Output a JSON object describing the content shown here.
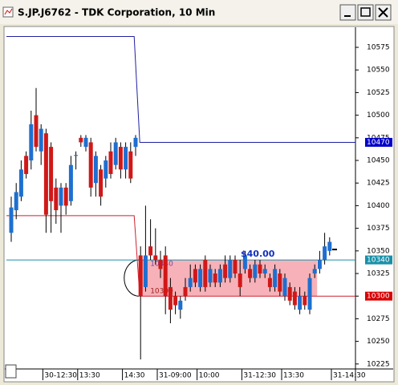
{
  "window": {
    "title": "S.JP.J6762 - TDK Corporation, 10 Min"
  },
  "chart_data": {
    "type": "candlestick",
    "categories": [
      null,
      null,
      null,
      null,
      null,
      null,
      null,
      "30-12:30",
      null,
      null,
      null,
      null,
      null,
      null,
      "13:30",
      null,
      null,
      null,
      null,
      null,
      null,
      null,
      null,
      "14:30",
      null,
      null,
      null,
      null,
      null,
      null,
      "31-09:00",
      null,
      null,
      null,
      null,
      null,
      null,
      null,
      "10:00",
      null,
      null,
      null,
      null,
      null,
      null,
      null,
      null,
      "31-12:30",
      null,
      null,
      null,
      null,
      null,
      null,
      null,
      "13:30",
      null,
      null,
      null,
      null,
      null,
      null,
      null,
      null,
      null,
      "31-14:30"
    ],
    "open": [
      10370,
      10395,
      10410,
      10455,
      10450,
      10500,
      10460,
      10480,
      10465,
      10420,
      10400,
      10420,
      10405,
      10455,
      10475,
      10465,
      10470,
      10425,
      10440,
      10430,
      10460,
      10445,
      10465,
      10440,
      10460,
      10465,
      10345,
      10310,
      10355,
      10345,
      10340,
      10345,
      10310,
      10300,
      10285,
      10310,
      10310,
      10330,
      10310,
      10340,
      10315,
      10325,
      10315,
      10335,
      10320,
      10340,
      10325,
      10330,
      10330,
      10320,
      10335,
      10325,
      10320,
      10310,
      10325,
      10300,
      10310,
      10305,
      10285,
      10300,
      10285,
      10325,
      10330,
      10340,
      10350,
      10352
    ],
    "high": [
      10410,
      10425,
      10450,
      10460,
      10505,
      10530,
      10490,
      10485,
      10470,
      10430,
      10425,
      10425,
      10455,
      10460,
      10478,
      10478,
      10475,
      10460,
      10445,
      10455,
      10470,
      10475,
      10470,
      10470,
      10470,
      10478,
      10355,
      10400,
      10385,
      10375,
      10350,
      10355,
      10320,
      10305,
      10300,
      10320,
      10335,
      10335,
      10335,
      10345,
      10335,
      10330,
      10335,
      10345,
      10345,
      10345,
      10340,
      10350,
      10335,
      10340,
      10340,
      10335,
      10325,
      10335,
      10330,
      10325,
      10315,
      10310,
      10310,
      10305,
      10325,
      10335,
      10350,
      10370,
      10365,
      10352
    ],
    "low": [
      10360,
      10385,
      10405,
      10430,
      10440,
      10460,
      10445,
      10370,
      10370,
      10380,
      10370,
      10390,
      10400,
      10440,
      10465,
      10460,
      10410,
      10410,
      10400,
      10420,
      10430,
      10440,
      10430,
      10430,
      10425,
      10455,
      10230,
      10305,
      10340,
      10335,
      10320,
      10280,
      10270,
      10280,
      10275,
      10295,
      10305,
      10310,
      10305,
      10305,
      10310,
      10310,
      10310,
      10315,
      10315,
      10320,
      10300,
      10325,
      10315,
      10315,
      10320,
      10320,
      10305,
      10305,
      10300,
      10295,
      10290,
      10285,
      10280,
      10285,
      10280,
      10320,
      10325,
      10335,
      10345,
      10352
    ],
    "close": [
      10398,
      10415,
      10440,
      10435,
      10490,
      10465,
      10485,
      10390,
      10405,
      10395,
      10420,
      10400,
      10445,
      10456,
      10470,
      10475,
      10420,
      10455,
      10410,
      10450,
      10435,
      10470,
      10440,
      10465,
      10430,
      10475,
      10300,
      10345,
      10345,
      10340,
      10330,
      10300,
      10285,
      10290,
      10295,
      10300,
      10320,
      10315,
      10330,
      10310,
      10330,
      10315,
      10330,
      10320,
      10340,
      10325,
      10310,
      10345,
      10320,
      10335,
      10325,
      10330,
      10310,
      10330,
      10305,
      10320,
      10295,
      10290,
      10300,
      10290,
      10320,
      10330,
      10340,
      10355,
      10360,
      10352
    ],
    "up_color": "#1e6fd0",
    "down_color": "#d01818",
    "ylim": [
      10219.5,
      10596.3
    ],
    "yticks": [
      10225,
      10250,
      10275,
      10300,
      10325,
      10350,
      10375,
      10400,
      10425,
      10450,
      10475,
      10500,
      10525,
      10550,
      10575
    ],
    "levels": [
      {
        "color": "#2020a0",
        "before": 10587,
        "after": 10470
      },
      {
        "color": "#d02030",
        "before": 10389,
        "after": 10300
      }
    ],
    "markers": [
      {
        "value": 10470,
        "color": "#0000c8"
      },
      {
        "value": 10340,
        "color": "#1890a8"
      },
      {
        "value": 10300,
        "color": "#d80000"
      }
    ],
    "zone": {
      "top": 10340,
      "bottom": 10300,
      "color": "#f4a4ac"
    },
    "annotation": "$40.00"
  }
}
